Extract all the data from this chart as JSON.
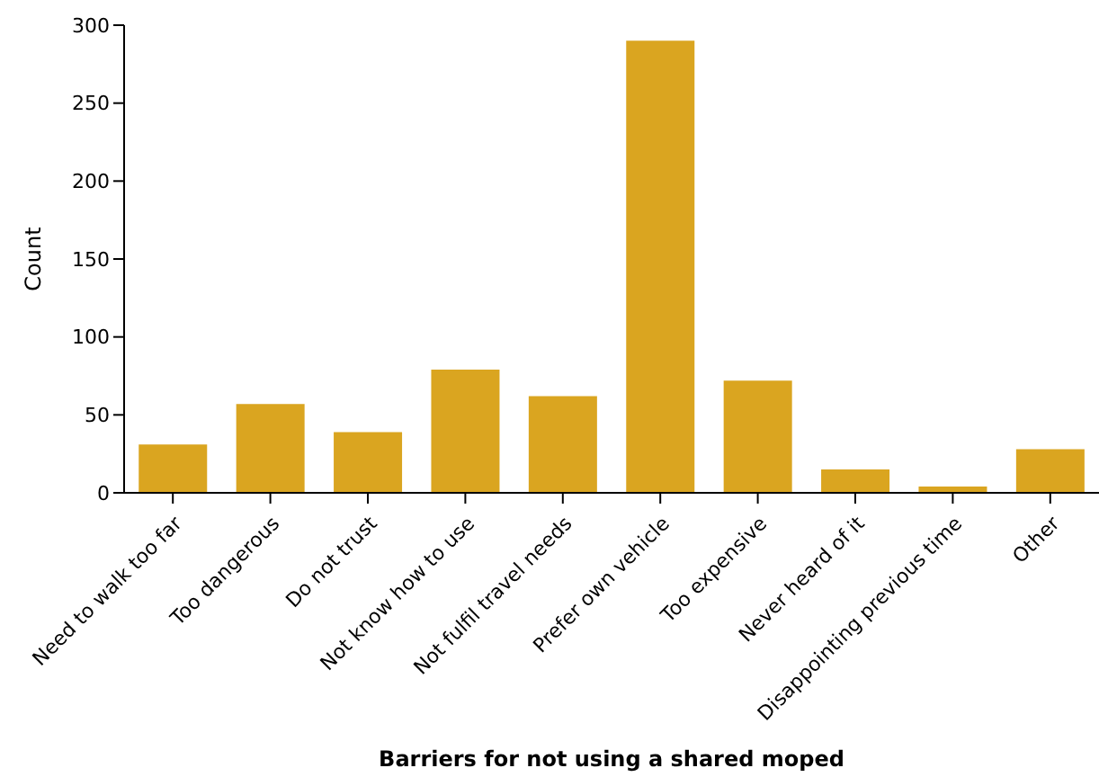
{
  "chart_data": {
    "type": "bar",
    "xlabel": "Barriers for not using a shared moped",
    "ylabel": "Count",
    "categories": [
      "Need to walk too far",
      "Too dangerous",
      "Do not trust",
      "Not know how to use",
      "Not fulfil travel needs",
      "Prefer own vehicle",
      "Too expensive",
      "Never heard of it",
      "Disappointing previous time",
      "Other"
    ],
    "values": [
      31,
      57,
      39,
      79,
      62,
      290,
      72,
      15,
      4,
      28
    ],
    "color": "#daa520",
    "ylim": [
      0,
      300
    ],
    "yticks": [
      0,
      50,
      100,
      150,
      200,
      250,
      300
    ],
    "grid": false,
    "legend": false
  }
}
